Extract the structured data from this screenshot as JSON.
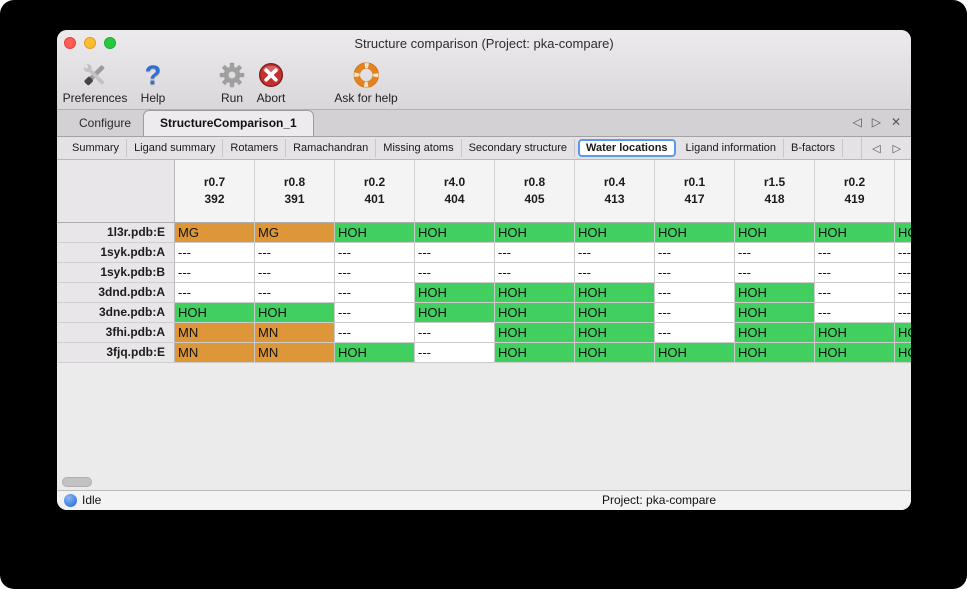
{
  "window": {
    "title": "Structure comparison (Project: pka-compare)"
  },
  "toolbar": {
    "help_glyph": "?",
    "items": [
      {
        "label": "Preferences"
      },
      {
        "label": "Help"
      },
      {
        "label": "Run"
      },
      {
        "label": "Abort"
      },
      {
        "label": "Ask for help"
      }
    ]
  },
  "main_tabs": {
    "tabs": [
      {
        "label": "Configure",
        "selected": false
      },
      {
        "label": "StructureComparison_1",
        "selected": true
      }
    ],
    "prev_arrow": "◁",
    "next_arrow": "▷",
    "close_glyph": "✕"
  },
  "subtabs": {
    "items": [
      {
        "label": "Summary",
        "selected": false
      },
      {
        "label": "Ligand summary",
        "selected": false
      },
      {
        "label": "Rotamers",
        "selected": false
      },
      {
        "label": "Ramachandran",
        "selected": false
      },
      {
        "label": "Missing atoms",
        "selected": false
      },
      {
        "label": "Secondary structure",
        "selected": false
      },
      {
        "label": "Water locations",
        "selected": true
      },
      {
        "label": "Ligand information",
        "selected": false
      },
      {
        "label": "B-factors",
        "selected": false
      }
    ],
    "prev_arrow": "◁",
    "next_arrow": "▷"
  },
  "table": {
    "columns": [
      {
        "line1": "r0.7",
        "line2": "392"
      },
      {
        "line1": "r0.8",
        "line2": "391"
      },
      {
        "line1": "r0.2",
        "line2": "401"
      },
      {
        "line1": "r4.0",
        "line2": "404"
      },
      {
        "line1": "r0.8",
        "line2": "405"
      },
      {
        "line1": "r0.4",
        "line2": "413"
      },
      {
        "line1": "r0.1",
        "line2": "417"
      },
      {
        "line1": "r1.5",
        "line2": "418"
      },
      {
        "line1": "r0.2",
        "line2": "419"
      },
      {
        "line1": "",
        "line2": ""
      }
    ],
    "rows": [
      {
        "label": "1l3r.pdb:E",
        "cells": [
          "MG",
          "MG",
          "HOH",
          "HOH",
          "HOH",
          "HOH",
          "HOH",
          "HOH",
          "HOH",
          "HOH"
        ]
      },
      {
        "label": "1syk.pdb:A",
        "cells": [
          "---",
          "---",
          "---",
          "---",
          "---",
          "---",
          "---",
          "---",
          "---",
          "---"
        ]
      },
      {
        "label": "1syk.pdb:B",
        "cells": [
          "---",
          "---",
          "---",
          "---",
          "---",
          "---",
          "---",
          "---",
          "---",
          "---"
        ]
      },
      {
        "label": "3dnd.pdb:A",
        "cells": [
          "---",
          "---",
          "---",
          "HOH",
          "HOH",
          "HOH",
          "---",
          "HOH",
          "---",
          "---"
        ]
      },
      {
        "label": "3dne.pdb:A",
        "cells": [
          "HOH",
          "HOH",
          "---",
          "HOH",
          "HOH",
          "HOH",
          "---",
          "HOH",
          "---",
          "---"
        ]
      },
      {
        "label": "3fhi.pdb:A",
        "cells": [
          "MN",
          "MN",
          "---",
          "---",
          "HOH",
          "HOH",
          "---",
          "HOH",
          "HOH",
          "HOH"
        ]
      },
      {
        "label": "3fjq.pdb:E",
        "cells": [
          "MN",
          "MN",
          "HOH",
          "---",
          "HOH",
          "HOH",
          "HOH",
          "HOH",
          "HOH",
          "HOH"
        ]
      }
    ],
    "cell_colors": {
      "HOH": "#41cf5f",
      "MG": "#dd9738",
      "MN": "#dd9738",
      "---": "#ffffff"
    }
  },
  "statusbar": {
    "status": "Idle",
    "project": "Project: pka-compare",
    "status_dot_color": "#1c62d8"
  }
}
